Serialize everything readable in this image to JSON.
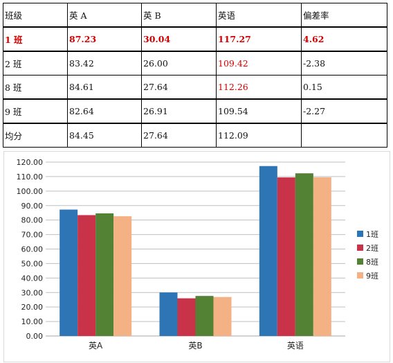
{
  "table": {
    "headers": [
      "班级",
      "英 A",
      "英 B",
      "英语",
      "偏差率"
    ],
    "rows": [
      {
        "cells": [
          "1 班",
          "87.23",
          "30.04",
          "117.27",
          "4.62"
        ],
        "bold": true
      },
      {
        "cells": [
          "2 班",
          "83.42",
          "26.00",
          "109.42",
          "-2.38"
        ],
        "red_col": 3
      },
      {
        "cells": [
          "8 班",
          "84.61",
          "27.64",
          "112.26",
          "0.15"
        ],
        "red_col": 3
      },
      {
        "cells": [
          "9 班",
          "82.64",
          "26.91",
          "109.54",
          "-2.27"
        ]
      },
      {
        "cells": [
          "均分",
          "84.45",
          "27.64",
          "112.09",
          ""
        ]
      }
    ],
    "text_color": "#111111",
    "highlight_color": "#d40000"
  },
  "chart_data": {
    "type": "bar",
    "categories": [
      "英A",
      "英B",
      "英语"
    ],
    "series": [
      {
        "name": "1班",
        "values": [
          87.23,
          30.04,
          117.27
        ],
        "color": "#2e75b6"
      },
      {
        "name": "2班",
        "values": [
          83.42,
          26.0,
          109.42
        ],
        "color": "#c9334a"
      },
      {
        "name": "8班",
        "values": [
          84.61,
          27.64,
          112.26
        ],
        "color": "#548235"
      },
      {
        "name": "9班",
        "values": [
          82.64,
          26.91,
          109.54
        ],
        "color": "#f4b183"
      }
    ],
    "ylim": [
      0,
      120
    ],
    "yticks": [
      "0.00",
      "10.00",
      "20.00",
      "30.00",
      "40.00",
      "50.00",
      "60.00",
      "70.00",
      "80.00",
      "90.00",
      "100.00",
      "110.00",
      "120.00"
    ],
    "grid": true,
    "legend_position": "right",
    "title": "",
    "xlabel": "",
    "ylabel": ""
  }
}
